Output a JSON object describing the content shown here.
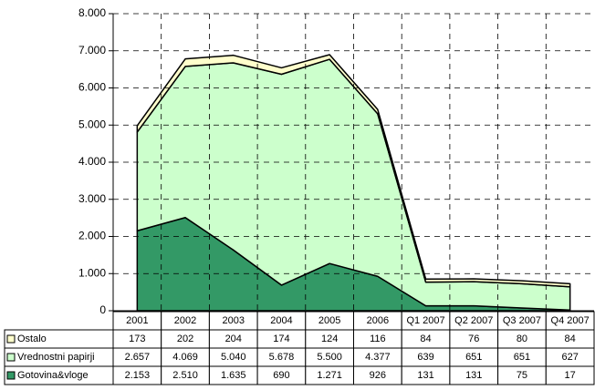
{
  "chart_data": {
    "type": "stacked_area",
    "categories": [
      "2001",
      "2002",
      "2003",
      "2004",
      "2005",
      "2006",
      "Q1 2007",
      "Q2 2007",
      "Q3 2007",
      "Q4 2007"
    ],
    "series": [
      {
        "name": "Gotovina&vloge",
        "color": "#339966",
        "values": [
          2153,
          2510,
          1635,
          690,
          1271,
          926,
          131,
          131,
          75,
          17
        ],
        "value_labels": [
          "2.153",
          "2.510",
          "1.635",
          "690",
          "1.271",
          "926",
          "131",
          "131",
          "75",
          "17"
        ]
      },
      {
        "name": "Vrednostni papirji",
        "color": "#ccffcc",
        "values": [
          2657,
          4069,
          5040,
          5678,
          5500,
          4377,
          639,
          651,
          651,
          627
        ],
        "value_labels": [
          "2.657",
          "4.069",
          "5.040",
          "5.678",
          "5.500",
          "4.377",
          "639",
          "651",
          "651",
          "627"
        ]
      },
      {
        "name": "Ostalo",
        "color": "#ffffcc",
        "values": [
          173,
          202,
          204,
          174,
          124,
          116,
          84,
          76,
          80,
          84
        ]
      }
    ],
    "ylim": [
      0,
      8000
    ],
    "yticks": [
      0,
      {
        "value": 1000,
        "label": "1.000"
      },
      {
        "value": 2000,
        "label": "2.000"
      },
      {
        "value": 3000,
        "label": "3.000"
      },
      {
        "value": 4000,
        "label": "4.000"
      },
      {
        "value": 5000,
        "label": "5.000"
      },
      {
        "value": 6000,
        "label": "6.000"
      },
      {
        "value": 7000,
        "label": "7.000"
      },
      {
        "value": 8000,
        "label": "8.000"
      }
    ],
    "grid": true
  }
}
